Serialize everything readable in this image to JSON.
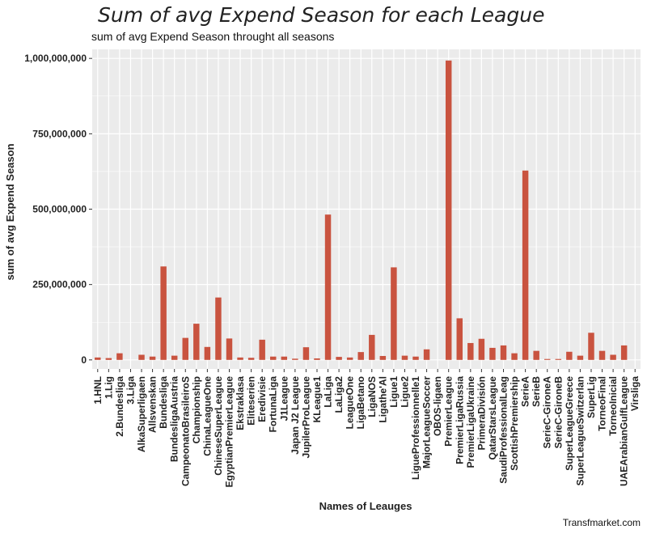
{
  "chart_data": {
    "type": "bar",
    "title": "Sum of avg Expend Season for each League",
    "subtitle": "sum of avg Expend Season throught all seasons",
    "xlabel": "Names of Leauges",
    "ylabel": "sum of avg Expend Season",
    "caption": "Transfmarket.com",
    "ylim": [
      -30000000,
      1030000000
    ],
    "yticks": [
      0,
      250000000,
      500000000,
      750000000,
      1000000000
    ],
    "ytick_labels": [
      "0",
      "250,000,000",
      "500,000,000",
      "750,000,000",
      "1,000,000,000"
    ],
    "grid": true,
    "bar_color": "#c9533f",
    "panel_color": "#ebebeb",
    "categories": [
      "1.HNL",
      "1.Lig",
      "2.Bundesliga",
      "3.Liga",
      "AlkaSuperligaen",
      "Allsvenskan",
      "Bundesliga",
      "BundesligaAustria",
      "CampeonatoBrasileiroS",
      "Championship",
      "ChinaLeagueOne",
      "ChineseSuperLeague",
      "EgyptianPremierLeague",
      "Ekstraklasa",
      "Eliteserien",
      "Eredivisie",
      "FortunaLiga",
      "J1League",
      "Japan J2 League",
      "JupilerProLeague",
      "KLeague1",
      "LaLiga",
      "LaLiga2",
      "LeagueOne",
      "LigaBetano",
      "LigaNOS",
      "Ligathe'Al",
      "Ligue1",
      "Ligue2",
      "LigueProfessionnelle1",
      "MajorLeagueSoccer",
      "OBOS-ligaen",
      "PremierLeague",
      "PremierLigaRussia",
      "PremierLigaUkraine",
      "PrimeraDivisión",
      "QatarStarsLeague",
      "SaudiProfessionalLeag",
      "ScottishPremiership",
      "SerieA",
      "SerieB",
      "SerieC-GironeA",
      "SerieC-GironeB",
      "SuperLeagueGreece",
      "SuperLeagueSwitzerlan",
      "SuperLig",
      "TorneoFinal",
      "TorneoInicial",
      "UAEArabianGulfLeague",
      "Virsliga"
    ],
    "values": [
      8000000,
      6000000,
      22000000,
      0,
      17000000,
      11000000,
      310000000,
      14000000,
      73000000,
      120000000,
      43000000,
      207000000,
      71000000,
      8000000,
      7000000,
      67000000,
      11000000,
      11000000,
      4000000,
      42000000,
      5000000,
      482000000,
      10000000,
      8000000,
      26000000,
      83000000,
      13000000,
      307000000,
      14000000,
      11000000,
      35000000,
      0,
      993000000,
      138000000,
      56000000,
      70000000,
      40000000,
      48000000,
      22000000,
      628000000,
      30000000,
      3000000,
      3000000,
      27000000,
      14000000,
      90000000,
      30000000,
      17000000,
      48000000,
      0
    ]
  }
}
